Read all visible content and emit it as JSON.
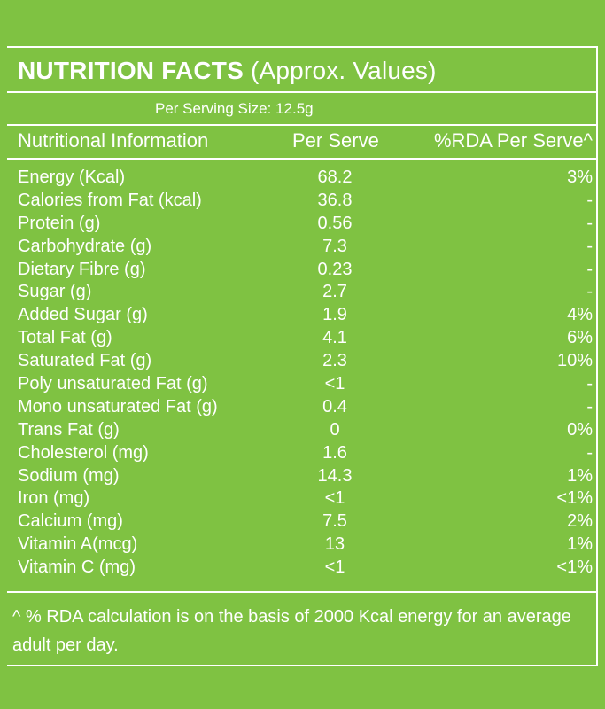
{
  "title": {
    "main": "NUTRITION FACTS",
    "sub": "(Approx. Values)"
  },
  "serving_size": "Per Serving Size: 12.5g",
  "headers": {
    "info": "Nutritional Information",
    "serve": "Per Serve",
    "rda": "%RDA Per Serve^"
  },
  "rows": [
    {
      "name": "Energy (Kcal)",
      "serve": "68.2",
      "rda": "3%"
    },
    {
      "name": "Calories from Fat (kcal)",
      "serve": "36.8",
      "rda": "-"
    },
    {
      "name": "Protein (g)",
      "serve": "0.56",
      "rda": "-"
    },
    {
      "name": "Carbohydrate (g)",
      "serve": "7.3",
      "rda": "-"
    },
    {
      "name": "Dietary Fibre (g)",
      "serve": "0.23",
      "rda": "-"
    },
    {
      "name": "Sugar (g)",
      "serve": "2.7",
      "rda": "-"
    },
    {
      "name": "Added Sugar (g)",
      "serve": "1.9",
      "rda": "4%"
    },
    {
      "name": "Total Fat (g)",
      "serve": "4.1",
      "rda": "6%"
    },
    {
      "name": "Saturated Fat (g)",
      "serve": "2.3",
      "rda": "10%"
    },
    {
      "name": "Poly unsaturated Fat (g)",
      "serve": "<1",
      "rda": "-"
    },
    {
      "name": "Mono unsaturated Fat (g)",
      "serve": "0.4",
      "rda": "-"
    },
    {
      "name": "Trans Fat (g)",
      "serve": "0",
      "rda": "0%"
    },
    {
      "name": "Cholesterol (mg)",
      "serve": "1.6",
      "rda": "-"
    },
    {
      "name": "Sodium (mg)",
      "serve": "14.3",
      "rda": "1%"
    },
    {
      "name": "Iron (mg)",
      "serve": "<1",
      "rda": "<1%"
    },
    {
      "name": "Calcium (mg)",
      "serve": "7.5",
      "rda": "2%"
    },
    {
      "name": "Vitamin A(mcg)",
      "serve": "13",
      "rda": "1%"
    },
    {
      "name": "Vitamin C (mg)",
      "serve": "<1",
      "rda": "<1%"
    }
  ],
  "footnote": "^ % RDA calculation is on the basis of 2000 Kcal energy for an average adult per day.",
  "colors": {
    "background": "#7fc242",
    "text": "#ffffff"
  }
}
